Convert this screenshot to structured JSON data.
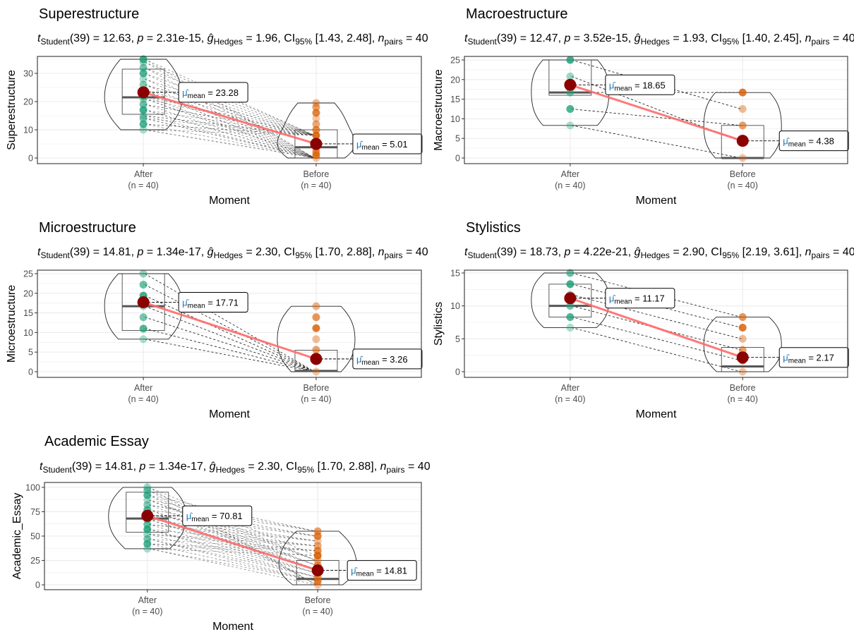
{
  "labels": {
    "t_sub": "Student",
    "g_sub": "Hedges",
    "ci": "CI",
    "ci_sub": "95%",
    "n_sub": "pairs",
    "mu_sub": "mean",
    "xlabel": "Moment"
  },
  "colors": {
    "After": "#1B9E77",
    "Before": "#D95F02",
    "mean_point": "#8B0000",
    "mean_line": "#FF6B6B",
    "label_text": "#1f77b4"
  },
  "chart_data": [
    {
      "type": "violin-box-paired",
      "title": "Superestructure",
      "stats": {
        "df": "39",
        "t": "12.63",
        "p": "2.31e-15",
        "g": "1.96",
        "ci": "[1.43, 2.48]",
        "n_pairs": "40"
      },
      "ylabel": "Superestructure",
      "ylim": [
        -2,
        36
      ],
      "yticks": [
        0,
        10,
        20,
        30
      ],
      "grid": true,
      "categories": [
        "After",
        "Before"
      ],
      "category_n": [
        "(n = 40)",
        "(n = 40)"
      ],
      "groups": [
        {
          "name": "After",
          "mean": 23.28,
          "mean_label": "23.28",
          "q1": 15.5,
          "median": 21.5,
          "q3": 31.5,
          "min": 10,
          "max": 35,
          "points": [
            10,
            12,
            14,
            15,
            17,
            19,
            21,
            22,
            24,
            26,
            28,
            30,
            32,
            34,
            35
          ]
        },
        {
          "name": "Before",
          "mean": 5.01,
          "mean_label": "5.01",
          "q1": 0,
          "median": 3.8,
          "q3": 10,
          "min": 0,
          "max": 19.5,
          "points": [
            0,
            1,
            2,
            3,
            4,
            5,
            6,
            8,
            10,
            12,
            14,
            16,
            18,
            19.5
          ]
        }
      ]
    },
    {
      "type": "violin-box-paired",
      "title": "Macroestructure",
      "stats": {
        "df": "39",
        "t": "12.47",
        "p": "3.52e-15",
        "g": "1.93",
        "ci": "[1.40, 2.45]",
        "n_pairs": "40"
      },
      "ylabel": "Macroestructure",
      "ylim": [
        -1.44,
        25.9
      ],
      "yticks": [
        0,
        5,
        10,
        15,
        20,
        25
      ],
      "grid": true,
      "categories": [
        "After",
        "Before"
      ],
      "category_n": [
        "(n = 40)",
        "(n = 40)"
      ],
      "groups": [
        {
          "name": "After",
          "mean": 18.65,
          "mean_label": "18.65",
          "q1": 16,
          "median": 16.7,
          "q3": 25,
          "min": 8.3,
          "max": 25,
          "points": [
            8.3,
            12.5,
            16.7,
            20.8,
            25
          ]
        },
        {
          "name": "Before",
          "mean": 4.38,
          "mean_label": "4.38",
          "q1": 0,
          "median": 0,
          "q3": 8.3,
          "min": 0,
          "max": 16.7,
          "points": [
            0,
            4.2,
            8.3,
            12.5,
            16.7
          ]
        }
      ]
    },
    {
      "type": "violin-box-paired",
      "title": "Microestructure",
      "stats": {
        "df": "39",
        "t": "14.81",
        "p": "1.34e-17",
        "g": "2.30",
        "ci": "[1.70, 2.88]",
        "n_pairs": "40"
      },
      "ylabel": "Microestructure",
      "ylim": [
        -1.44,
        25.9
      ],
      "yticks": [
        0,
        5,
        10,
        15,
        20,
        25
      ],
      "grid": true,
      "categories": [
        "After",
        "Before"
      ],
      "category_n": [
        "(n = 40)",
        "(n = 40)"
      ],
      "groups": [
        {
          "name": "After",
          "mean": 17.71,
          "mean_label": "17.71",
          "q1": 10.5,
          "median": 16.7,
          "q3": 25,
          "min": 8.3,
          "max": 25,
          "points": [
            8.3,
            11,
            13.9,
            16.7,
            19.4,
            22.2,
            25
          ]
        },
        {
          "name": "Before",
          "mean": 3.26,
          "mean_label": "3.26",
          "q1": 0,
          "median": 0.2,
          "q3": 5.5,
          "min": 0,
          "max": 16.7,
          "points": [
            0,
            2.8,
            5.6,
            8.3,
            11.1,
            13.9,
            16.7
          ]
        }
      ]
    },
    {
      "type": "violin-box-paired",
      "title": "Stylistics",
      "stats": {
        "df": "39",
        "t": "18.73",
        "p": "4.22e-21",
        "g": "2.90",
        "ci": "[2.19, 3.61]",
        "n_pairs": "40"
      },
      "ylabel": "Stylistics",
      "ylim": [
        -0.86,
        15.43
      ],
      "yticks": [
        0,
        5,
        10,
        15
      ],
      "grid": true,
      "categories": [
        "After",
        "Before"
      ],
      "category_n": [
        "(n = 40)",
        "(n = 40)"
      ],
      "groups": [
        {
          "name": "After",
          "mean": 11.17,
          "mean_label": "11.17",
          "q1": 8.3,
          "median": 10,
          "q3": 13.3,
          "min": 6.7,
          "max": 15,
          "points": [
            6.7,
            8.3,
            10,
            11.7,
            13.3,
            15
          ]
        },
        {
          "name": "Before",
          "mean": 2.17,
          "mean_label": "2.17",
          "q1": 0,
          "median": 0.8,
          "q3": 3.7,
          "min": 0,
          "max": 8.3,
          "points": [
            0,
            1.7,
            3.3,
            5,
            6.7,
            8.3
          ]
        }
      ]
    },
    {
      "type": "violin-box-paired",
      "title": "Academic Essay",
      "stats": {
        "df": "39",
        "t": "14.81",
        "p": "1.34e-17",
        "g": "2.30",
        "ci": "[1.70, 2.88]",
        "n_pairs": "40"
      },
      "ylabel": "Academic_Essay",
      "ylim": [
        -5,
        105
      ],
      "yticks": [
        0,
        25,
        50,
        75,
        100
      ],
      "grid": true,
      "categories": [
        "After",
        "Before"
      ],
      "category_n": [
        "(n = 40)",
        "(n = 40)"
      ],
      "groups": [
        {
          "name": "After",
          "mean": 70.81,
          "mean_label": "70.81",
          "q1": 54,
          "median": 68,
          "q3": 95,
          "min": 37,
          "max": 100,
          "points": [
            37,
            42,
            47,
            52,
            57,
            62,
            67,
            72,
            77,
            82,
            87,
            92,
            97,
            100
          ]
        },
        {
          "name": "Before",
          "mean": 14.81,
          "mean_label": "14.81",
          "q1": 0,
          "median": 6,
          "q3": 25,
          "min": 0,
          "max": 55,
          "points": [
            0,
            4,
            8,
            12,
            16,
            20,
            25,
            30,
            35,
            40,
            45,
            50,
            55
          ]
        }
      ]
    }
  ]
}
